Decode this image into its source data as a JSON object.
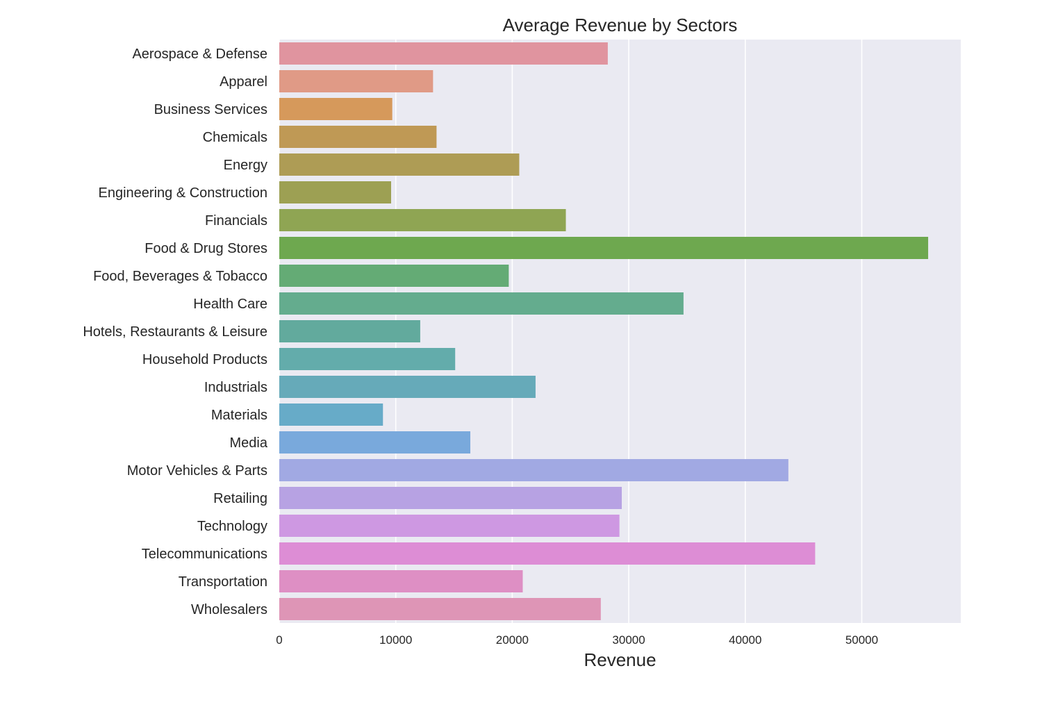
{
  "chart_data": {
    "type": "bar",
    "orientation": "horizontal",
    "title": "Average Revenue by Sectors",
    "xlabel": "Revenue",
    "ylabel": "",
    "xlim": [
      0,
      58500
    ],
    "xticks": [
      0,
      10000,
      20000,
      30000,
      40000,
      50000
    ],
    "grid": true,
    "categories": [
      "Aerospace & Defense",
      "Apparel",
      "Business Services",
      "Chemicals",
      "Energy",
      "Engineering & Construction",
      "Financials",
      "Food & Drug Stores",
      "Food, Beverages & Tobacco",
      "Health Care",
      "Hotels, Restaurants & Leisure",
      "Household Products",
      "Industrials",
      "Materials",
      "Media",
      "Motor Vehicles & Parts",
      "Retailing",
      "Technology",
      "Telecommunications",
      "Transportation",
      "Wholesalers"
    ],
    "values": [
      28200,
      13200,
      9700,
      13500,
      20600,
      9600,
      24600,
      55700,
      19700,
      34700,
      12100,
      15100,
      22000,
      8900,
      16400,
      43700,
      29400,
      29200,
      46000,
      20900,
      27600
    ],
    "colors": [
      "#e0949f",
      "#e09a86",
      "#d6995b",
      "#bf9955",
      "#ae9c55",
      "#9da053",
      "#8fa553",
      "#6ea84f",
      "#64ab75",
      "#64ac8e",
      "#62aa9d",
      "#63acab",
      "#66aab9",
      "#67abc8",
      "#79a9dc",
      "#a1a9e3",
      "#b7a2e3",
      "#ce98e2",
      "#dd8dd5",
      "#de8fc4",
      "#de95b6"
    ]
  }
}
